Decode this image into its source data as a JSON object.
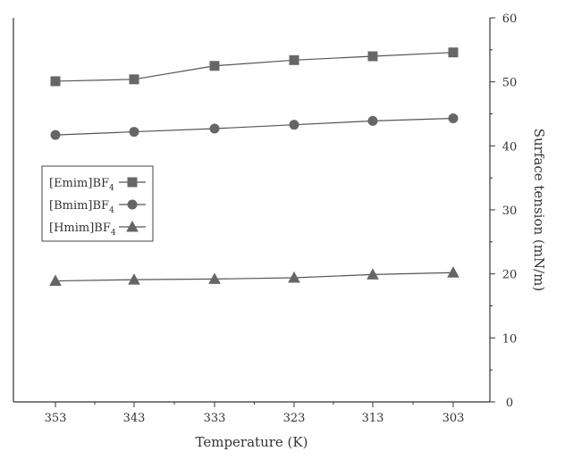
{
  "chart_data": {
    "type": "line",
    "xlabel": "Temperature (K)",
    "ylabel": "Surface tension (mN/m)",
    "x": [
      353,
      343,
      333,
      323,
      313,
      303
    ],
    "x_ticks": [
      "353",
      "343",
      "333",
      "323",
      "313",
      "303"
    ],
    "y_ticks": [
      "0",
      "10",
      "20",
      "30",
      "40",
      "50",
      "60"
    ],
    "ylim": [
      0,
      60
    ],
    "x_reversed": true,
    "y_axis_side": "right",
    "grid": false,
    "legend_position": "left-middle",
    "series": [
      {
        "name": "[Emim]BF4",
        "marker": "square",
        "values": [
          50.1,
          50.4,
          52.5,
          53.4,
          54.0,
          54.6
        ]
      },
      {
        "name": "[Bmim]BF4",
        "marker": "circle",
        "values": [
          41.7,
          42.2,
          42.7,
          43.3,
          43.9,
          44.3
        ]
      },
      {
        "name": "[Hmim]BF4",
        "marker": "triangle",
        "values": [
          18.9,
          19.1,
          19.2,
          19.4,
          19.9,
          20.2
        ]
      }
    ],
    "legend_labels": [
      {
        "main": "[Emim]BF",
        "sub": "4"
      },
      {
        "main": "[Bmim]BF",
        "sub": "4"
      },
      {
        "main": "[Hmim]BF",
        "sub": "4"
      }
    ],
    "colors": {
      "line": "#555555",
      "marker": "#666666",
      "axis": "#333333"
    }
  }
}
